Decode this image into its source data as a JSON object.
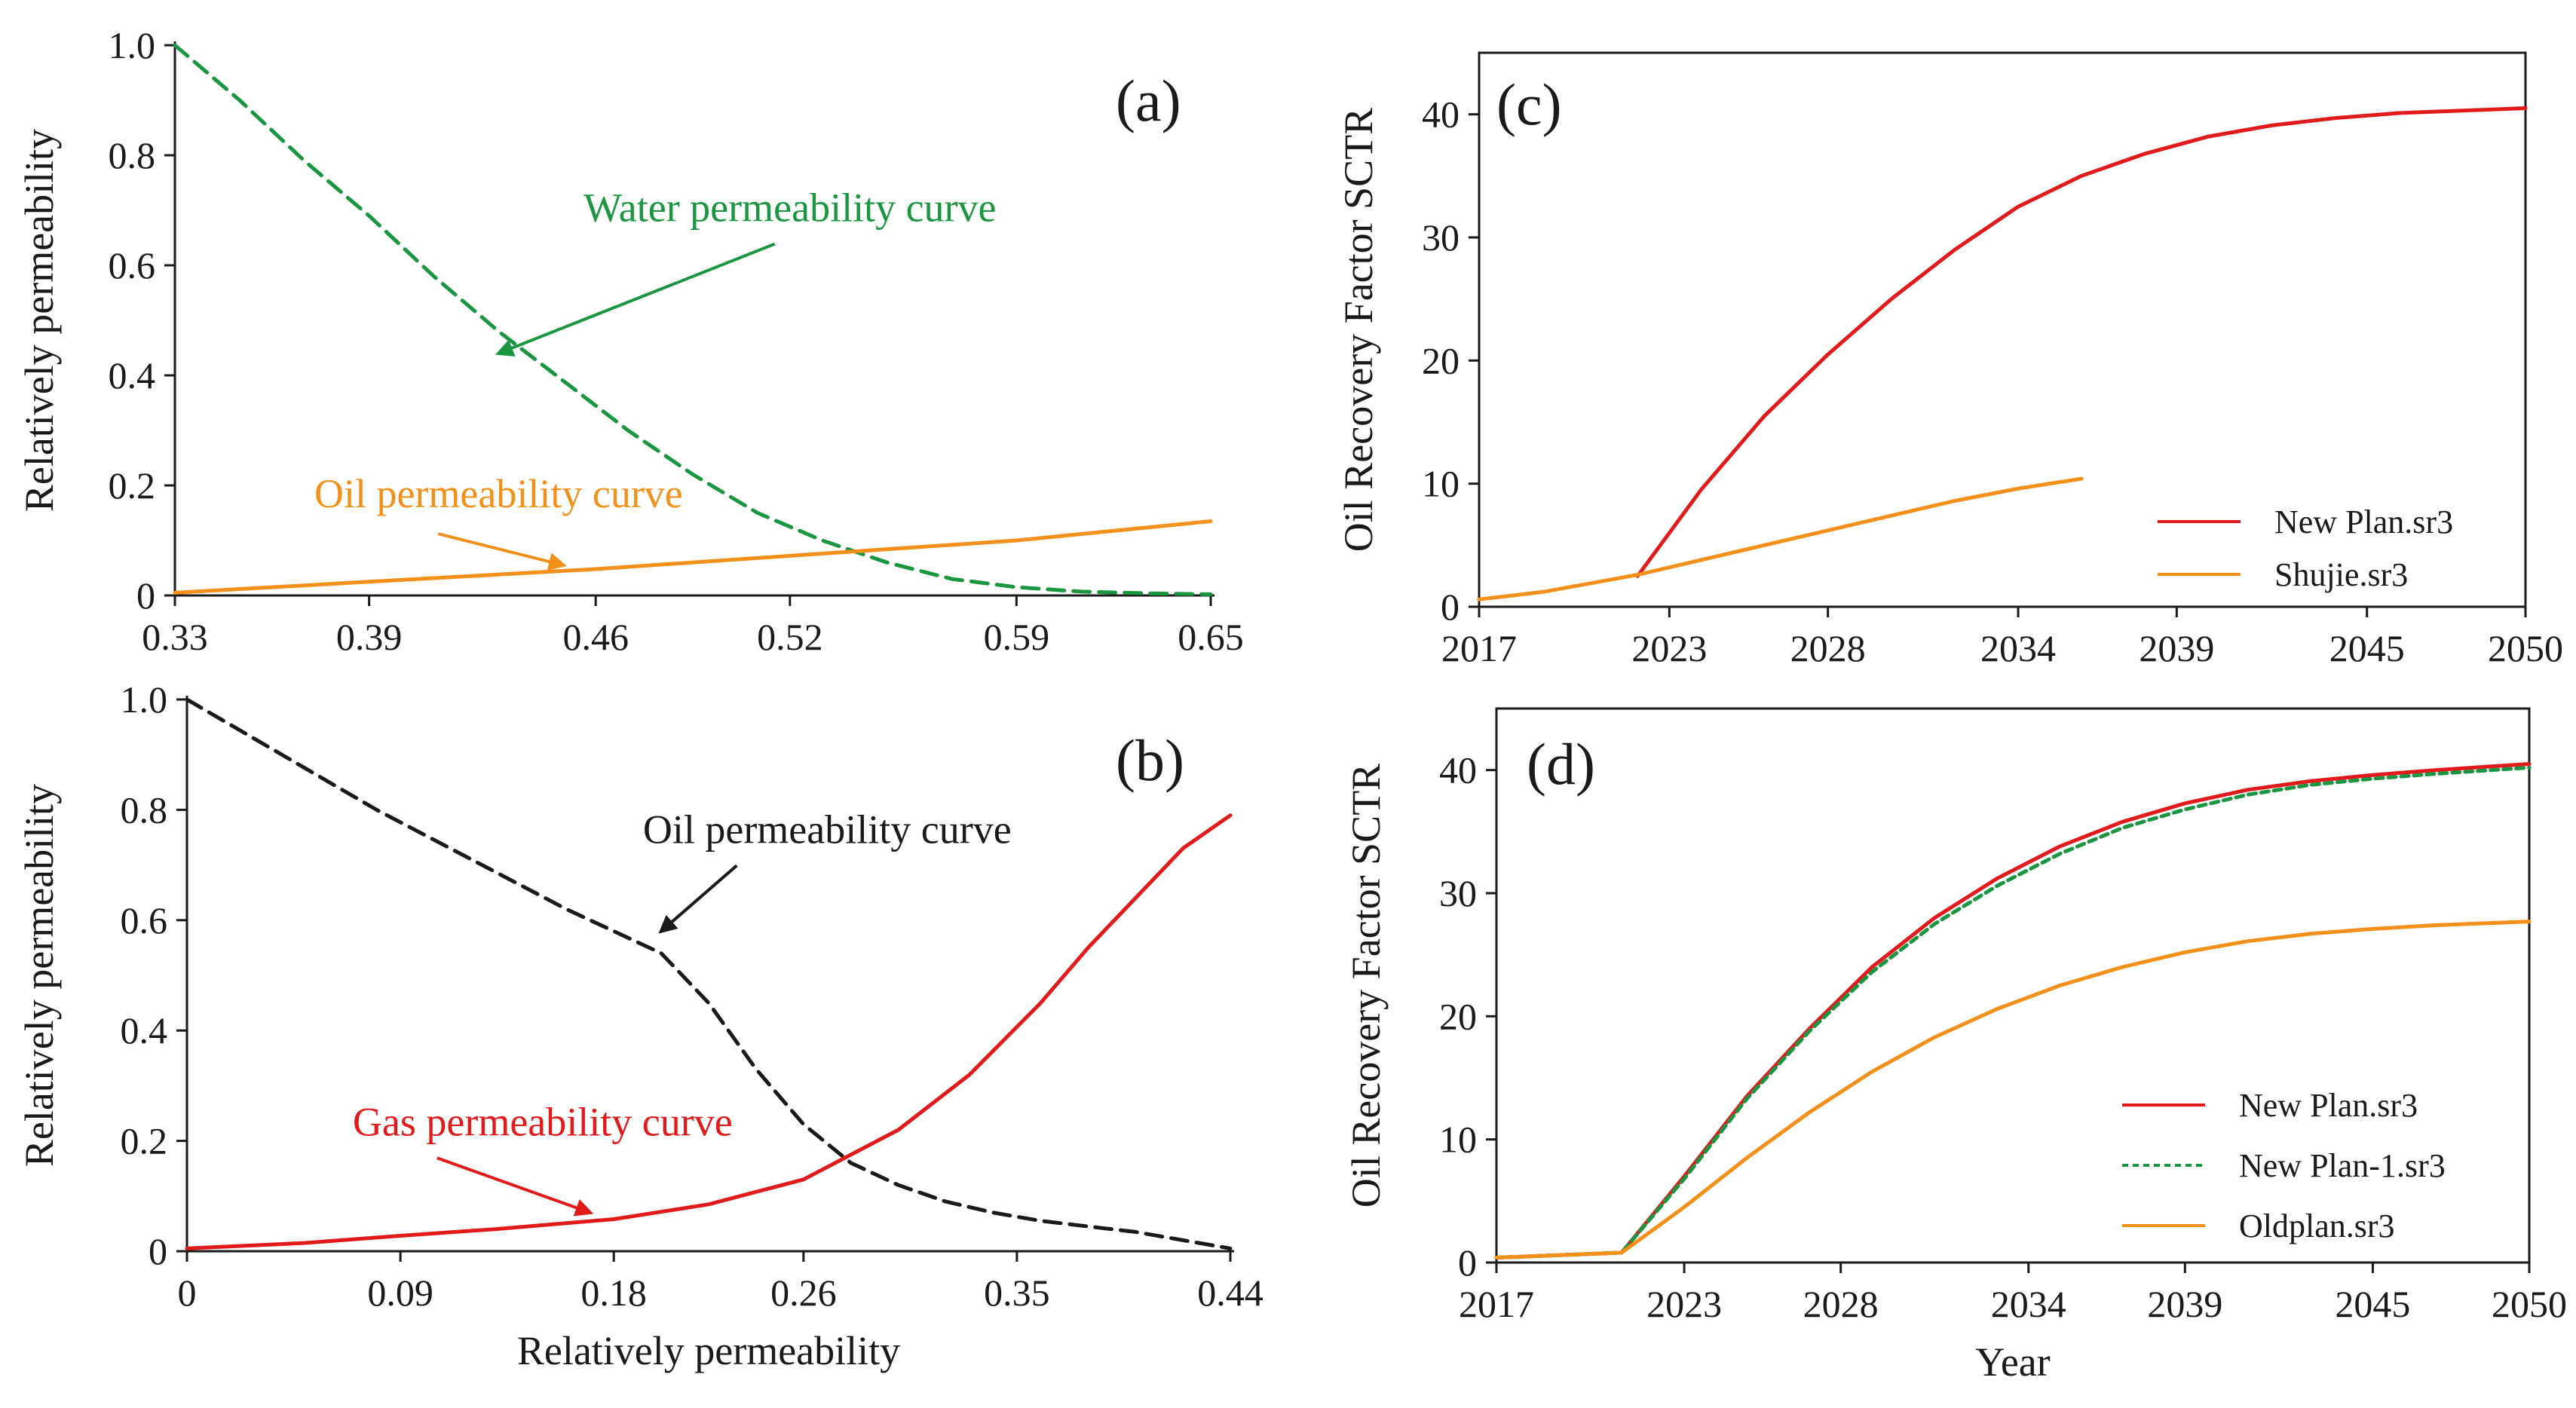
{
  "chart_data": [
    {
      "id": "a",
      "type": "line",
      "panel_label": "(a)",
      "xlabel": "",
      "ylabel": "Relatively permeability",
      "xlim": [
        0.33,
        0.65
      ],
      "ylim": [
        0,
        1
      ],
      "xticks": [
        0.33,
        0.39,
        0.46,
        0.52,
        0.59,
        0.65
      ],
      "xtick_labels": [
        "0.33",
        "0.39",
        "0.46",
        "0.52",
        "0.59",
        "0.65"
      ],
      "yticks": [
        0,
        0.2,
        0.4,
        0.6,
        0.8,
        1.0
      ],
      "ytick_labels": [
        "0",
        "0.2",
        "0.4",
        "0.6",
        "0.8",
        "1.0"
      ],
      "series": [
        {
          "name": "Water permeability curve",
          "color": "#1a9641",
          "dash": true,
          "x": [
            0.33,
            0.35,
            0.37,
            0.39,
            0.41,
            0.43,
            0.45,
            0.47,
            0.49,
            0.51,
            0.53,
            0.55,
            0.57,
            0.59,
            0.61,
            0.63,
            0.65
          ],
          "y": [
            1.0,
            0.9,
            0.79,
            0.69,
            0.58,
            0.48,
            0.39,
            0.3,
            0.22,
            0.15,
            0.1,
            0.06,
            0.03,
            0.015,
            0.007,
            0.004,
            0.002
          ]
        },
        {
          "name": "Oil permeability curve",
          "color": "#f39019",
          "dash": false,
          "x": [
            0.33,
            0.39,
            0.46,
            0.52,
            0.59,
            0.65
          ],
          "y": [
            0.005,
            0.025,
            0.048,
            0.072,
            0.1,
            0.135
          ]
        }
      ],
      "annotations": [
        {
          "text": "Water permeability curve",
          "color": "#1a9641",
          "x": 0.52,
          "y": 0.68,
          "arrow_to": [
            0.43,
            0.44
          ]
        },
        {
          "text": "Oil permeability curve",
          "color": "#f39019",
          "x": 0.43,
          "y": 0.16,
          "arrow_to": [
            0.45,
            0.055
          ]
        }
      ]
    },
    {
      "id": "b",
      "type": "line",
      "panel_label": "(b)",
      "xlabel": "Relatively permeability",
      "ylabel": "Relatively permeability",
      "xlim": [
        0,
        0.44
      ],
      "ylim": [
        0,
        1
      ],
      "xticks": [
        0,
        0.09,
        0.18,
        0.26,
        0.35,
        0.44
      ],
      "xtick_labels": [
        "0",
        "0.09",
        "0.18",
        "0.26",
        "0.35",
        "0.44"
      ],
      "yticks": [
        0,
        0.2,
        0.4,
        0.6,
        0.8,
        1.0
      ],
      "ytick_labels": [
        "0",
        "0.2",
        "0.4",
        "0.6",
        "0.8",
        "1.0"
      ],
      "series": [
        {
          "name": "Oil permeability curve",
          "color": "#1a1a1a",
          "dash": true,
          "x": [
            0,
            0.04,
            0.08,
            0.12,
            0.16,
            0.18,
            0.2,
            0.22,
            0.24,
            0.26,
            0.28,
            0.3,
            0.32,
            0.34,
            0.36,
            0.38,
            0.4,
            0.42,
            0.44
          ],
          "y": [
            1.0,
            0.9,
            0.8,
            0.71,
            0.62,
            0.58,
            0.54,
            0.45,
            0.33,
            0.23,
            0.16,
            0.12,
            0.09,
            0.07,
            0.055,
            0.045,
            0.035,
            0.02,
            0.005
          ]
        },
        {
          "name": "Gas permeability curve",
          "color": "#e31a1c",
          "dash": false,
          "x": [
            0,
            0.05,
            0.09,
            0.13,
            0.18,
            0.22,
            0.26,
            0.3,
            0.33,
            0.36,
            0.38,
            0.4,
            0.42,
            0.44
          ],
          "y": [
            0.005,
            0.015,
            0.028,
            0.04,
            0.058,
            0.085,
            0.13,
            0.22,
            0.32,
            0.45,
            0.55,
            0.64,
            0.73,
            0.79
          ]
        }
      ],
      "annotations": [
        {
          "text": "Oil permeability curve",
          "color": "#1a1a1a",
          "x": 0.27,
          "y": 0.74,
          "arrow_to": [
            0.2,
            0.58
          ]
        },
        {
          "text": "Gas permeability curve",
          "color": "#e31a1c",
          "x": 0.15,
          "y": 0.21,
          "arrow_to": [
            0.17,
            0.07
          ]
        }
      ]
    },
    {
      "id": "c",
      "type": "line",
      "panel_label": "(c)",
      "xlabel": "",
      "ylabel": "Oil Recovery Factor SCTR",
      "xlim": [
        2017,
        2050
      ],
      "ylim": [
        0,
        45
      ],
      "xticks": [
        2017,
        2023,
        2028,
        2034,
        2039,
        2045,
        2050
      ],
      "xtick_labels": [
        "2017",
        "2023",
        "2028",
        "2034",
        "2039",
        "2045",
        "2050"
      ],
      "yticks": [
        0,
        10,
        20,
        30,
        40
      ],
      "ytick_labels": [
        "0",
        "10",
        "20",
        "30",
        "40"
      ],
      "legend_position": "bottom-right",
      "series": [
        {
          "name": "New Plan.sr3",
          "color": "#e31a1c",
          "dash": false,
          "x": [
            2022,
            2024,
            2026,
            2028,
            2030,
            2032,
            2034,
            2036,
            2038,
            2040,
            2042,
            2044,
            2046,
            2048,
            2050
          ],
          "y": [
            2.5,
            9.5,
            15.5,
            20.5,
            25,
            29,
            32.5,
            35,
            36.8,
            38.2,
            39.1,
            39.7,
            40.1,
            40.3,
            40.5
          ]
        },
        {
          "name": "Shujie.sr3",
          "color": "#f39019",
          "dash": false,
          "x": [
            2017,
            2019,
            2022,
            2024,
            2026,
            2028,
            2030,
            2032,
            2034,
            2036
          ],
          "y": [
            0.6,
            1.2,
            2.6,
            3.8,
            5,
            6.2,
            7.4,
            8.6,
            9.6,
            10.4
          ]
        }
      ]
    },
    {
      "id": "d",
      "type": "line",
      "panel_label": "(d)",
      "xlabel": "Year",
      "ylabel": "Oil Recovery Factor SCTR",
      "xlim": [
        2017,
        2050
      ],
      "ylim": [
        0,
        45
      ],
      "xticks": [
        2017,
        2023,
        2028,
        2034,
        2039,
        2045,
        2050
      ],
      "xtick_labels": [
        "2017",
        "2023",
        "2028",
        "2034",
        "2039",
        "2045",
        "2050"
      ],
      "yticks": [
        0,
        10,
        20,
        30,
        40
      ],
      "ytick_labels": [
        "0",
        "10",
        "20",
        "30",
        "40"
      ],
      "legend_position": "bottom-right",
      "series": [
        {
          "name": "New Plan.sr3",
          "color": "#e31a1c",
          "dash": false,
          "x": [
            2017,
            2019,
            2021,
            2023,
            2025,
            2027,
            2029,
            2031,
            2033,
            2035,
            2037,
            2039,
            2041,
            2043,
            2045,
            2047,
            2050
          ],
          "y": [
            0.4,
            0.6,
            0.8,
            7,
            13.5,
            19,
            24,
            28,
            31.2,
            33.8,
            35.8,
            37.3,
            38.4,
            39.1,
            39.6,
            40,
            40.5
          ]
        },
        {
          "name": "New Plan-1.sr3",
          "color": "#1a9641",
          "dash": true,
          "x": [
            2017,
            2019,
            2021,
            2023,
            2025,
            2027,
            2029,
            2031,
            2033,
            2035,
            2037,
            2039,
            2041,
            2043,
            2045,
            2047,
            2050
          ],
          "y": [
            0.4,
            0.6,
            0.8,
            6.8,
            13.3,
            18.8,
            23.6,
            27.5,
            30.6,
            33.2,
            35.3,
            36.8,
            38,
            38.8,
            39.3,
            39.7,
            40.2
          ]
        },
        {
          "name": "Oldplan.sr3",
          "color": "#f39019",
          "dash": false,
          "x": [
            2017,
            2019,
            2021,
            2023,
            2025,
            2027,
            2029,
            2031,
            2033,
            2035,
            2037,
            2039,
            2041,
            2043,
            2045,
            2047,
            2050
          ],
          "y": [
            0.4,
            0.6,
            0.8,
            4.5,
            8.5,
            12.2,
            15.5,
            18.3,
            20.6,
            22.5,
            24,
            25.2,
            26.1,
            26.7,
            27.1,
            27.4,
            27.7
          ]
        }
      ]
    }
  ]
}
